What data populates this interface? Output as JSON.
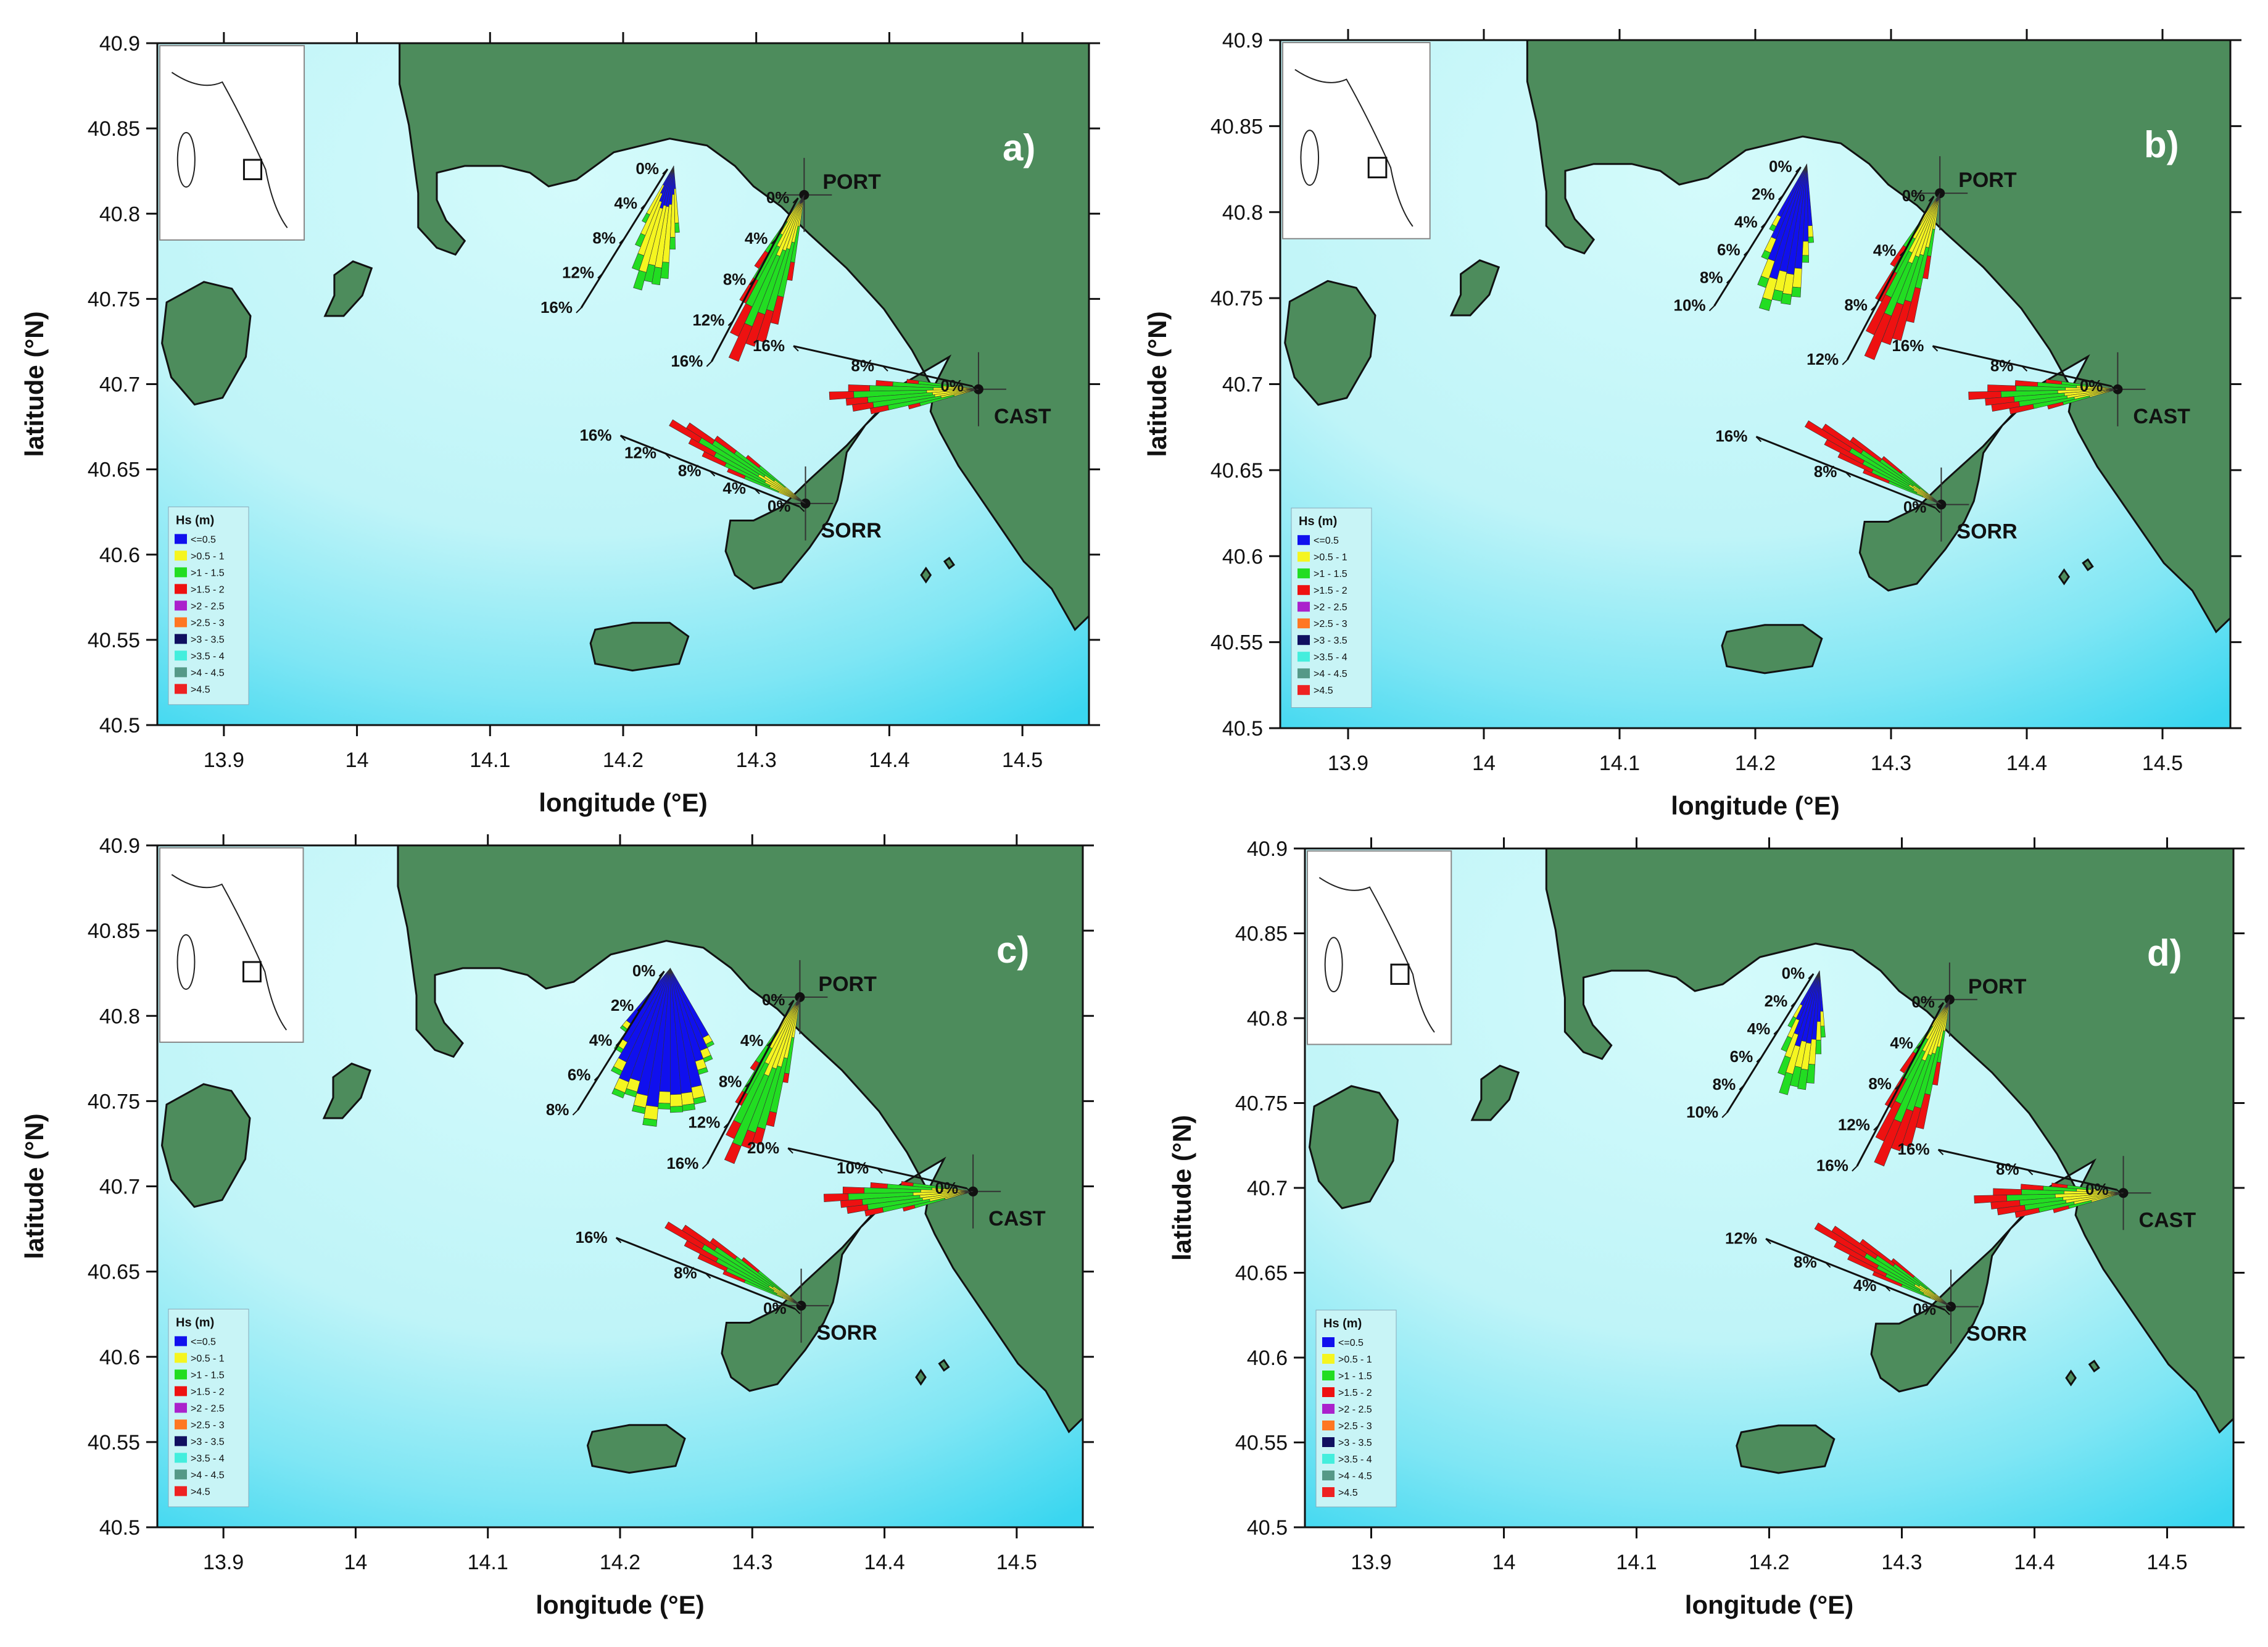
{
  "axes": {
    "xlabel": "longitude (°E)",
    "ylabel": "latitude (°N)",
    "xticks": [
      "13.9",
      "14",
      "14.1",
      "14.2",
      "14.3",
      "14.4",
      "14.5"
    ],
    "xtick_values": [
      13.9,
      14.0,
      14.1,
      14.2,
      14.3,
      14.4,
      14.5
    ],
    "yticks": [
      "40.9",
      "40.85",
      "40.8",
      "40.75",
      "40.7",
      "40.65",
      "40.6",
      "40.55",
      "40.5"
    ],
    "ytick_values": [
      40.9,
      40.85,
      40.8,
      40.75,
      40.7,
      40.65,
      40.6,
      40.55,
      40.5
    ],
    "xlim": [
      13.85,
      14.55
    ],
    "ylim": [
      40.5,
      40.9
    ]
  },
  "stations": [
    {
      "name": "PORT",
      "lon": 14.336,
      "lat": 40.811
    },
    {
      "name": "CAST",
      "lon": 14.467,
      "lat": 40.697
    },
    {
      "name": "SORR",
      "lon": 14.337,
      "lat": 40.63
    }
  ],
  "legend": {
    "title": "Hs (m)",
    "classes": [
      {
        "label": "<=0.5",
        "color": "#1010ee"
      },
      {
        "label": ">0.5 - 1",
        "color": "#f5f520"
      },
      {
        "label": ">1 - 1.5",
        "color": "#22dd22"
      },
      {
        "label": ">1.5 - 2",
        "color": "#ee1111"
      },
      {
        "label": ">2 - 2.5",
        "color": "#aa22cc"
      },
      {
        "label": ">2.5 - 3",
        "color": "#ff7722"
      },
      {
        "label": ">3 - 3.5",
        "color": "#101060"
      },
      {
        "label": ">3.5 - 4",
        "color": "#44eedd"
      },
      {
        "label": ">4 - 4.5",
        "color": "#559988"
      },
      {
        "label": ">4.5",
        "color": "#ee2222"
      }
    ]
  },
  "colors": {
    "land": "#4d8c5c",
    "sea_light": "#d4fbfb",
    "sea_dark": "#3ad6f0"
  },
  "panels": [
    {
      "label": "a)",
      "roses": [
        {
          "station": "near0",
          "scale": [
            "0%",
            "4%",
            "8%",
            "12%",
            "16%"
          ],
          "bins": [
            [
              0.12,
              0.18,
              0.05
            ],
            [
              0.2,
              0.25,
              0.1
            ],
            [
              0.15,
              0.3,
              0.15
            ]
          ]
        },
        {
          "station": "PORT",
          "scale": [
            "0%",
            "4%",
            "8%",
            "12%",
            "16%"
          ],
          "bins": [
            [
              0.05,
              0.3,
              0.4,
              0.2
            ],
            [
              0.05,
              0.2,
              0.45,
              0.25
            ]
          ]
        },
        {
          "station": "CAST",
          "scale": [
            "0%",
            "8%",
            "16%"
          ],
          "bins": [
            [
              0.02,
              0.3,
              0.45,
              0.15
            ],
            [
              0.03,
              0.45,
              0.1
            ]
          ]
        },
        {
          "station": "SORR",
          "scale": [
            "0%",
            "4%",
            "8%",
            "12%",
            "16%"
          ],
          "bins": [
            [
              0.02,
              0.3,
              0.4,
              0.2
            ]
          ]
        }
      ]
    },
    {
      "label": "b)",
      "roses": [
        {
          "station": "near0",
          "scale": [
            "0%",
            "2%",
            "4%",
            "6%",
            "8%",
            "10%"
          ],
          "bins": [
            [
              0.55,
              0.1,
              0.05
            ],
            [
              0.6,
              0.05,
              0.02
            ]
          ]
        },
        {
          "station": "PORT",
          "scale": [
            "0%",
            "4%",
            "8%",
            "12%"
          ],
          "bins": [
            [
              0.05,
              0.35,
              0.3,
              0.25
            ]
          ]
        },
        {
          "station": "CAST",
          "scale": [
            "0%",
            "8%",
            "16%"
          ],
          "bins": [
            [
              0.02,
              0.35,
              0.35,
              0.2
            ]
          ]
        },
        {
          "station": "SORR",
          "scale": [
            "0%",
            "8%",
            "16%"
          ],
          "bins": [
            [
              0.02,
              0.2,
              0.4,
              0.3
            ]
          ]
        }
      ]
    },
    {
      "label": "c)",
      "roses": [
        {
          "station": "near0",
          "scale": [
            "0%",
            "2%",
            "4%",
            "6%",
            "8%"
          ],
          "bins": [
            [
              0.85,
              0.08,
              0.04
            ]
          ]
        },
        {
          "station": "PORT",
          "scale": [
            "0%",
            "4%",
            "8%",
            "12%",
            "16%"
          ],
          "bins": [
            [
              0.05,
              0.4,
              0.4,
              0.1
            ]
          ]
        },
        {
          "station": "CAST",
          "scale": [
            "0%",
            "10%",
            "20%"
          ],
          "bins": [
            [
              0.02,
              0.35,
              0.4,
              0.15
            ]
          ]
        },
        {
          "station": "SORR",
          "scale": [
            "0%",
            "8%",
            "16%"
          ],
          "bins": [
            [
              0.02,
              0.2,
              0.45,
              0.25
            ]
          ]
        }
      ]
    },
    {
      "label": "d)",
      "roses": [
        {
          "station": "near0",
          "scale": [
            "0%",
            "2%",
            "4%",
            "6%",
            "8%",
            "10%"
          ],
          "bins": [
            [
              0.55,
              0.2,
              0.15
            ]
          ]
        },
        {
          "station": "PORT",
          "scale": [
            "0%",
            "4%",
            "8%",
            "12%",
            "16%"
          ],
          "bins": [
            [
              0.05,
              0.3,
              0.35,
              0.25
            ]
          ]
        },
        {
          "station": "CAST",
          "scale": [
            "0%",
            "8%",
            "16%"
          ],
          "bins": [
            [
              0.02,
              0.4,
              0.3,
              0.2
            ]
          ]
        },
        {
          "station": "SORR",
          "scale": [
            "0%",
            "4%",
            "8%",
            "12%"
          ],
          "bins": [
            [
              0.02,
              0.2,
              0.3,
              0.3
            ]
          ]
        }
      ]
    }
  ]
}
